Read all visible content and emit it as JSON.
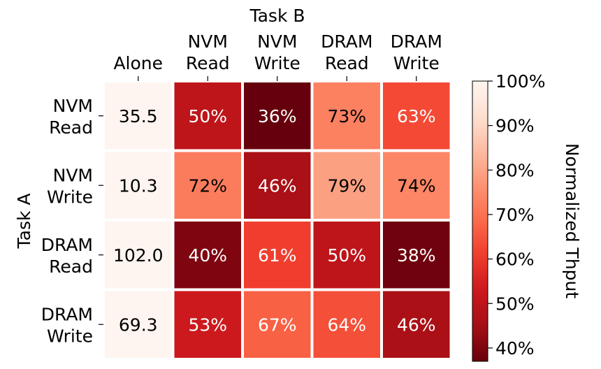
{
  "chart_data": {
    "type": "heatmap",
    "title": "",
    "xlabel": "Task B",
    "ylabel": "Task A",
    "columns": [
      {
        "line1": "",
        "line2": "Alone"
      },
      {
        "line1": "NVM",
        "line2": "Read"
      },
      {
        "line1": "NVM",
        "line2": "Write"
      },
      {
        "line1": "DRAM",
        "line2": "Read"
      },
      {
        "line1": "DRAM",
        "line2": "Write"
      }
    ],
    "rows": [
      {
        "line1": "NVM",
        "line2": "Read"
      },
      {
        "line1": "NVM",
        "line2": "Write"
      },
      {
        "line1": "DRAM",
        "line2": "Read"
      },
      {
        "line1": "DRAM",
        "line2": "Write"
      }
    ],
    "alone_values": [
      "35.5",
      "10.3",
      "102.0",
      "69.3"
    ],
    "values": [
      [
        50,
        36,
        73,
        63
      ],
      [
        72,
        46,
        79,
        74
      ],
      [
        40,
        61,
        50,
        38
      ],
      [
        53,
        67,
        64,
        46
      ]
    ],
    "value_suffix": "%",
    "colorbar": {
      "label": "Normalized Thput",
      "range": [
        37,
        100
      ],
      "ticks": [
        40,
        50,
        60,
        70,
        80,
        90,
        100
      ],
      "tick_suffix": "%",
      "colormap": "Reds_r"
    },
    "alone_cell_color": "#fff5f0",
    "grid": false
  }
}
